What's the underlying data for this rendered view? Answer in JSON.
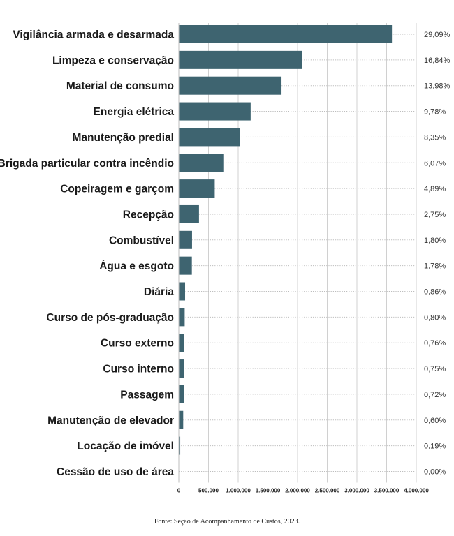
{
  "chart_data": {
    "type": "bar",
    "orientation": "horizontal",
    "categories": [
      "Vigilância armada e desarmada",
      "Limpeza e conservação",
      "Material de consumo",
      "Energia elétrica",
      "Manutenção predial",
      "Brigada particular contra incêndio",
      "Copeiragem e garçom",
      "Recepção",
      "Combustível",
      "Água e esgoto",
      "Diária",
      "Curso de pós-graduação",
      "Curso externo",
      "Curso interno",
      "Passagem",
      "Manutenção de elevador",
      "Locação de imóvel",
      "Cessão de uso de área"
    ],
    "values": [
      3590000,
      2080000,
      1730000,
      1210000,
      1035000,
      750000,
      605000,
      340000,
      223000,
      220000,
      106000,
      99000,
      94000,
      93000,
      89000,
      74000,
      24000,
      0
    ],
    "percent_labels": [
      "29,09%",
      "16,84%",
      "13,98%",
      "9,78%",
      "8,35%",
      "6,07%",
      "4,89%",
      "2,75%",
      "1,80%",
      "1,78%",
      "0,86%",
      "0,80%",
      "0,76%",
      "0,75%",
      "0,72%",
      "0,60%",
      "0,19%",
      "0,00%"
    ],
    "xlim": [
      0,
      4000000
    ],
    "x_ticks": [
      0,
      500000,
      1000000,
      1500000,
      2000000,
      2500000,
      3000000,
      3500000,
      4000000
    ],
    "x_tick_labels": [
      "0",
      "500.000",
      "1.000.000",
      "1.500.000",
      "2.000.000",
      "2.500.000",
      "3.000.000",
      "3.500.000",
      "4.000.000"
    ],
    "grid": true,
    "bar_color": "#3e6470",
    "grid_color": "#bdbdbd",
    "source": "Fonte: Seção de Acompanhamento de Custos, 2023."
  }
}
